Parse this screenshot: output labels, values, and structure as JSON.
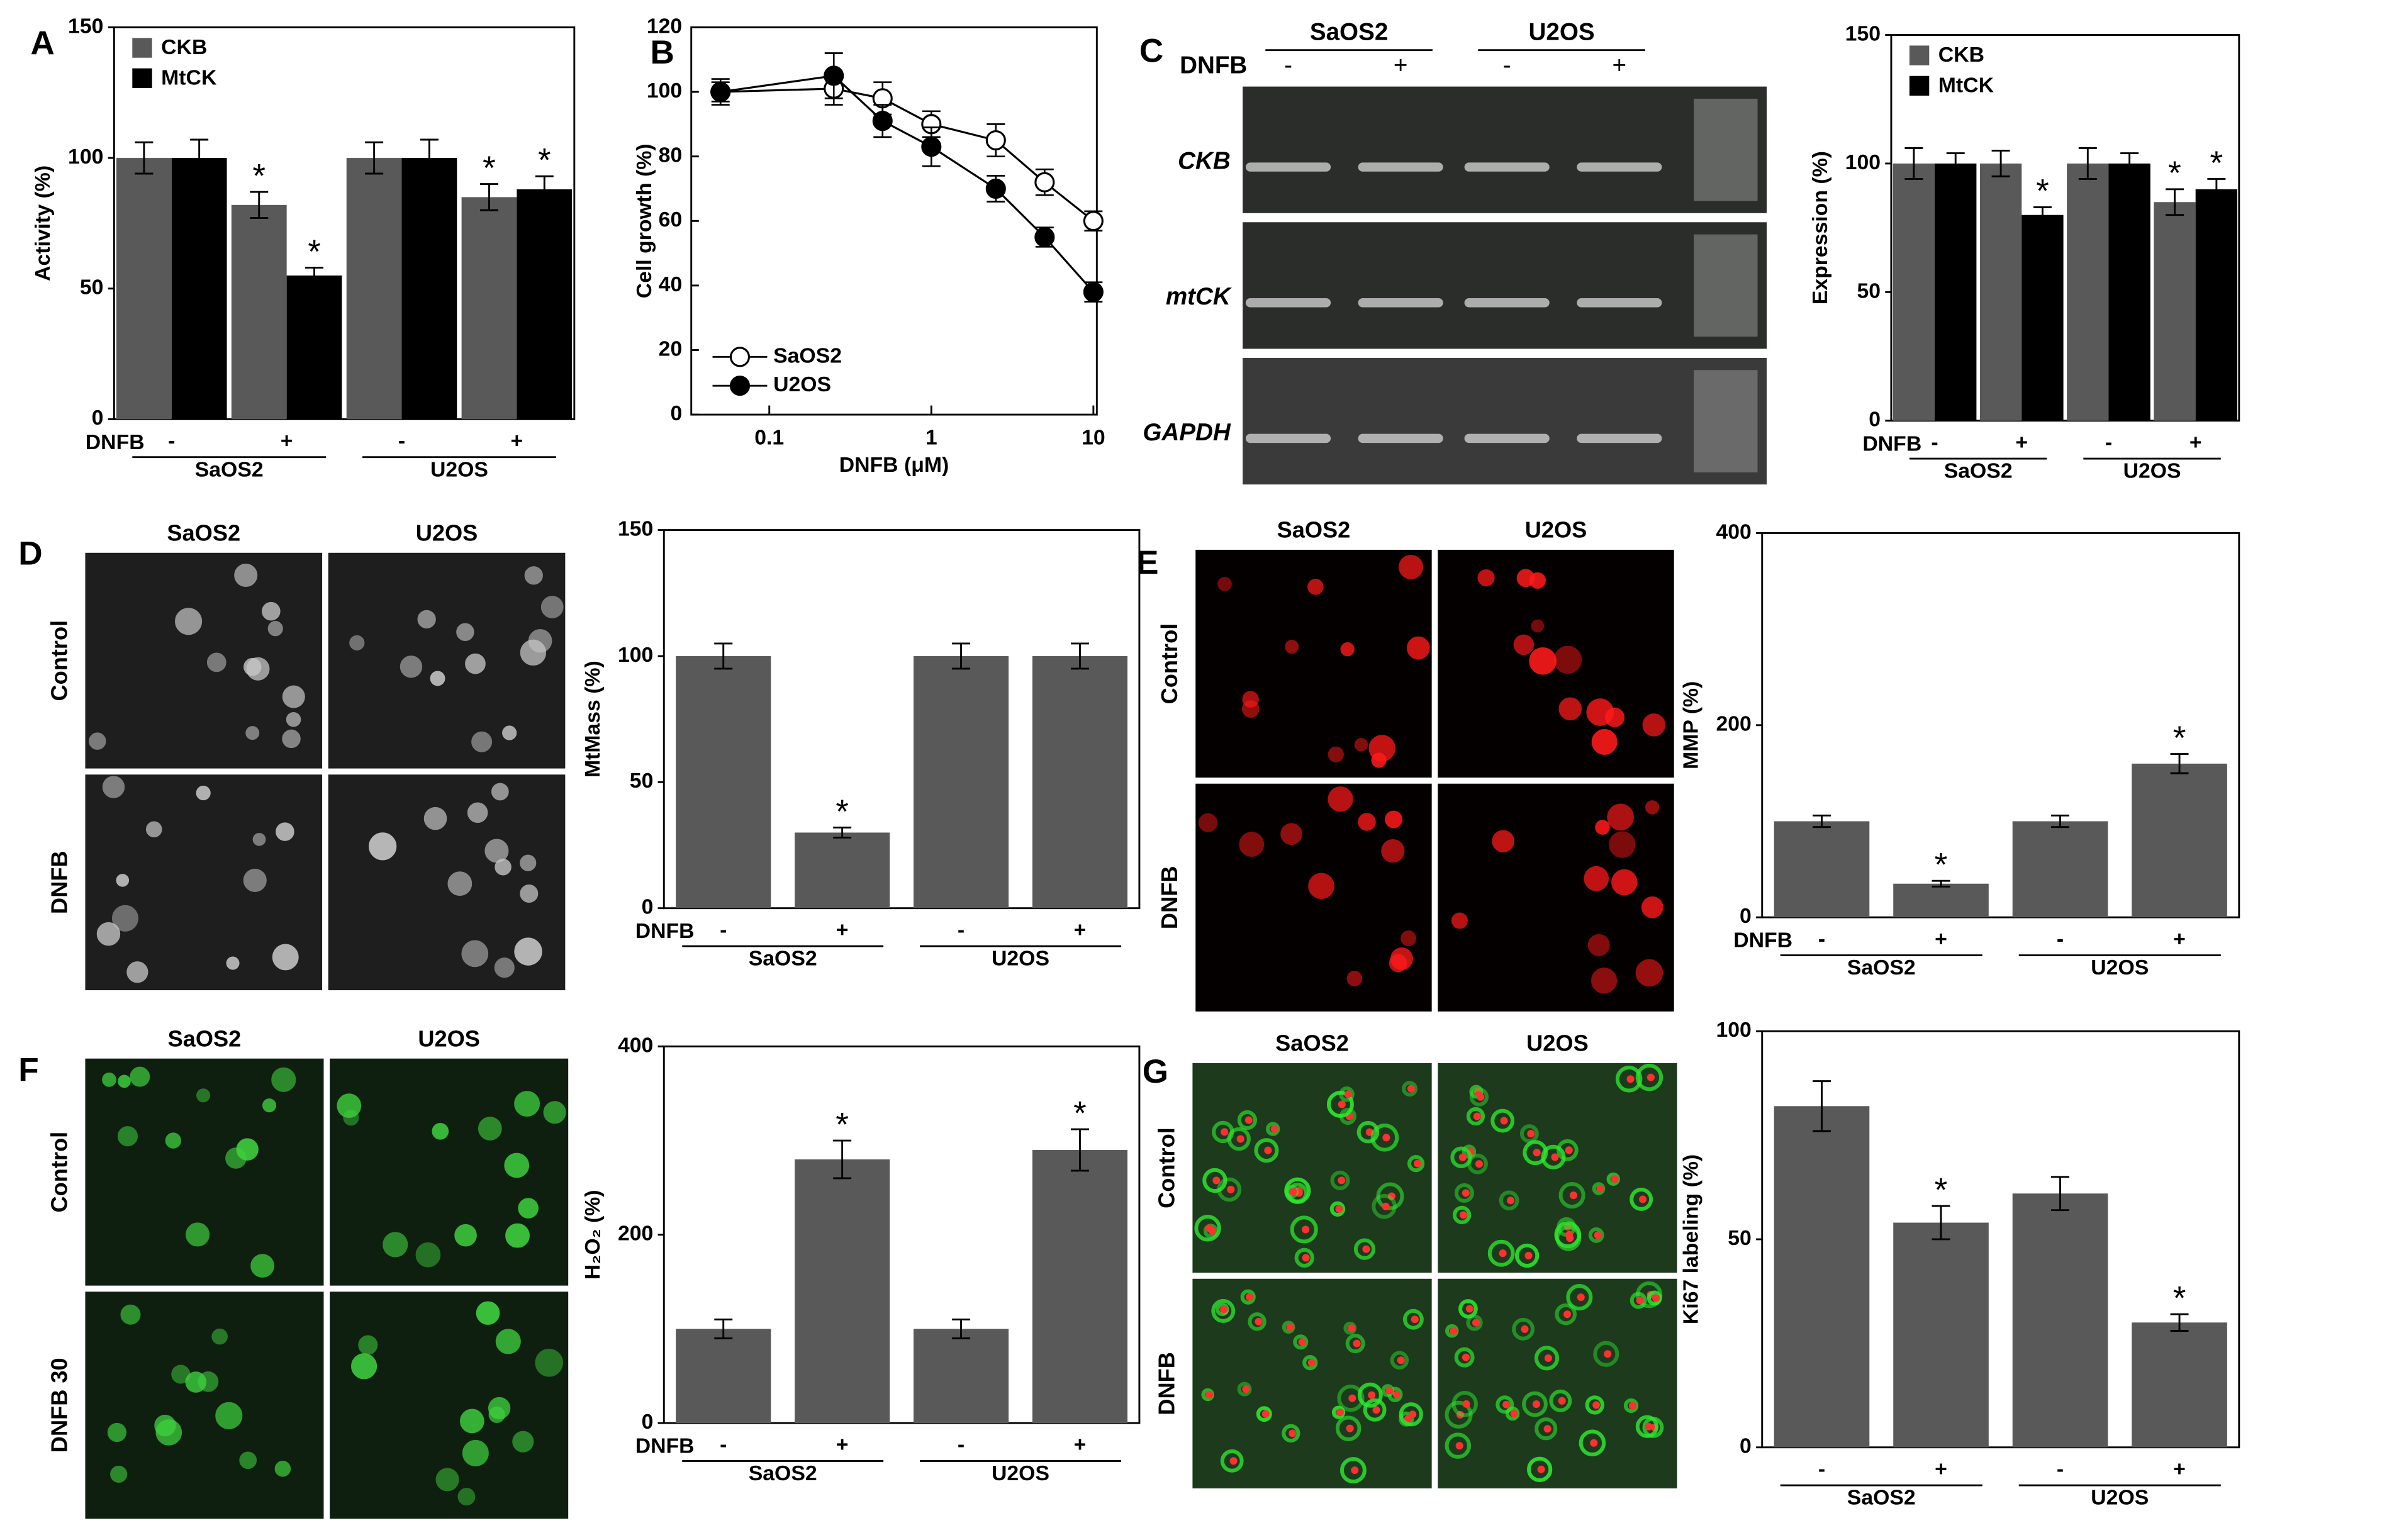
{
  "chart_data": [
    {
      "type": "bar",
      "panel": "A",
      "ylabel": "Activity (%)",
      "category_axis_label": "DNFB",
      "categories": [
        "-",
        "+",
        "-",
        "+"
      ],
      "groups": [
        "SaOS2",
        "U2OS"
      ],
      "legend": "upper left",
      "ylim": [
        0,
        150
      ],
      "yticks": [
        0,
        50,
        100,
        150
      ],
      "series": [
        {
          "name": "CKB",
          "color": "#595959",
          "values": [
            100,
            82,
            100,
            85
          ],
          "errors": [
            6,
            5,
            6,
            5
          ],
          "significance": [
            null,
            "*",
            null,
            "*"
          ]
        },
        {
          "name": "MtCK",
          "color": "#000000",
          "values": [
            100,
            55,
            100,
            88
          ],
          "errors": [
            7,
            3,
            7,
            5
          ],
          "significance": [
            null,
            "*",
            null,
            "*"
          ]
        }
      ]
    },
    {
      "type": "line",
      "panel": "B",
      "ylabel": "Cell growth (%)",
      "xlabel": "DNFB (μM)",
      "xscale": "log",
      "legend": "lower left",
      "x": [
        0.05,
        0.25,
        0.5,
        1,
        2.5,
        5,
        10
      ],
      "xlim": [
        0.033,
        10.5
      ],
      "xticks": [
        0.1,
        1,
        10
      ],
      "ylim": [
        0,
        120
      ],
      "yticks": [
        0,
        20,
        40,
        60,
        80,
        100,
        120
      ],
      "series": [
        {
          "name": "SaOS2",
          "marker": "open",
          "color": "#000000",
          "values": [
            100,
            101,
            98,
            90,
            85,
            72,
            60
          ],
          "errors": [
            4,
            5,
            5,
            4,
            5,
            4,
            3
          ]
        },
        {
          "name": "U2OS",
          "marker": "filled",
          "color": "#000000",
          "values": [
            100,
            105,
            91,
            83,
            70,
            55,
            38
          ],
          "errors": [
            3,
            7,
            5,
            6,
            4,
            3,
            3
          ]
        }
      ]
    },
    {
      "type": "bar",
      "ylabel": "Expression (%)",
      "category_axis_label": "DNFB",
      "categories": [
        "-",
        "+",
        "-",
        "+"
      ],
      "groups": [
        "SaOS2",
        "U2OS"
      ],
      "legend": "upper left",
      "ylim": [
        0,
        150
      ],
      "yticks": [
        0,
        50,
        100,
        150
      ],
      "series": [
        {
          "name": "CKB",
          "color": "#595959",
          "values": [
            100,
            100,
            100,
            85
          ],
          "errors": [
            6,
            5,
            6,
            5
          ],
          "significance": [
            null,
            null,
            null,
            "*"
          ]
        },
        {
          "name": "MtCK",
          "color": "#000000",
          "values": [
            100,
            80,
            100,
            90
          ],
          "errors": [
            4,
            3,
            4,
            4
          ],
          "significance": [
            null,
            "*",
            null,
            "*"
          ]
        }
      ]
    },
    {
      "type": "bar",
      "ylabel": "MtMass (%)",
      "category_axis_label": "DNFB",
      "categories": [
        "-",
        "+",
        "-",
        "+"
      ],
      "groups": [
        "SaOS2",
        "U2OS"
      ],
      "ylim": [
        0,
        150
      ],
      "yticks": [
        0,
        50,
        100,
        150
      ],
      "color": "#595959",
      "values": [
        100,
        30,
        100,
        100
      ],
      "errors": [
        5,
        2,
        5,
        5
      ],
      "significance": [
        null,
        "*",
        null,
        null
      ]
    },
    {
      "type": "bar",
      "ylabel": "MMP (%)",
      "category_axis_label": "DNFB",
      "categories": [
        "-",
        "+",
        "-",
        "+"
      ],
      "groups": [
        "SaOS2",
        "U2OS"
      ],
      "ylim": [
        0,
        400
      ],
      "yticks": [
        0,
        200,
        400
      ],
      "color": "#595959",
      "values": [
        100,
        35,
        100,
        160
      ],
      "errors": [
        6,
        3,
        6,
        10
      ],
      "significance": [
        null,
        "*",
        null,
        "*"
      ]
    },
    {
      "type": "bar",
      "ylabel": "H₂O₂ (%)",
      "category_axis_label": "DNFB",
      "categories": [
        "-",
        "+",
        "-",
        "+"
      ],
      "groups": [
        "SaOS2",
        "U2OS"
      ],
      "ylim": [
        0,
        400
      ],
      "yticks": [
        0,
        200,
        400
      ],
      "color": "#595959",
      "values": [
        100,
        280,
        100,
        290
      ],
      "errors": [
        10,
        20,
        10,
        22
      ],
      "significance": [
        null,
        "*",
        null,
        "*"
      ]
    },
    {
      "type": "bar",
      "ylabel": "Ki67 labeling (%)",
      "categories": [
        "-",
        "+",
        "-",
        "+"
      ],
      "groups": [
        "SaOS2",
        "U2OS"
      ],
      "ylim": [
        0,
        100
      ],
      "yticks": [
        0,
        50,
        100
      ],
      "color": "#595959",
      "values": [
        82,
        54,
        61,
        30
      ],
      "errors": [
        6,
        4,
        4,
        2
      ],
      "significance": [
        null,
        "*",
        null,
        "*"
      ]
    }
  ],
  "image_panels": [
    {
      "panel": "C",
      "kind": "gel",
      "columns": [
        "SaOS2",
        "U2OS"
      ],
      "lane_label": "DNFB",
      "lanes": [
        "-",
        "+",
        "-",
        "+"
      ],
      "rows": [
        "CKB",
        "mtCK",
        "GAPDH"
      ]
    },
    {
      "panel": "D",
      "kind": "grey",
      "columns": [
        "SaOS2",
        "U2OS"
      ],
      "rows": [
        "Control",
        "DNFB"
      ]
    },
    {
      "panel": "E",
      "kind": "red",
      "columns": [
        "SaOS2",
        "U2OS"
      ],
      "rows": [
        "Control",
        "DNFB"
      ]
    },
    {
      "panel": "F",
      "kind": "green",
      "columns": [
        "SaOS2",
        "U2OS"
      ],
      "rows": [
        "Control",
        "DNFB 30"
      ]
    },
    {
      "panel": "G",
      "kind": "ki67",
      "columns": [
        "SaOS2",
        "U2OS"
      ],
      "rows": [
        "Control",
        "DNFB"
      ]
    }
  ]
}
